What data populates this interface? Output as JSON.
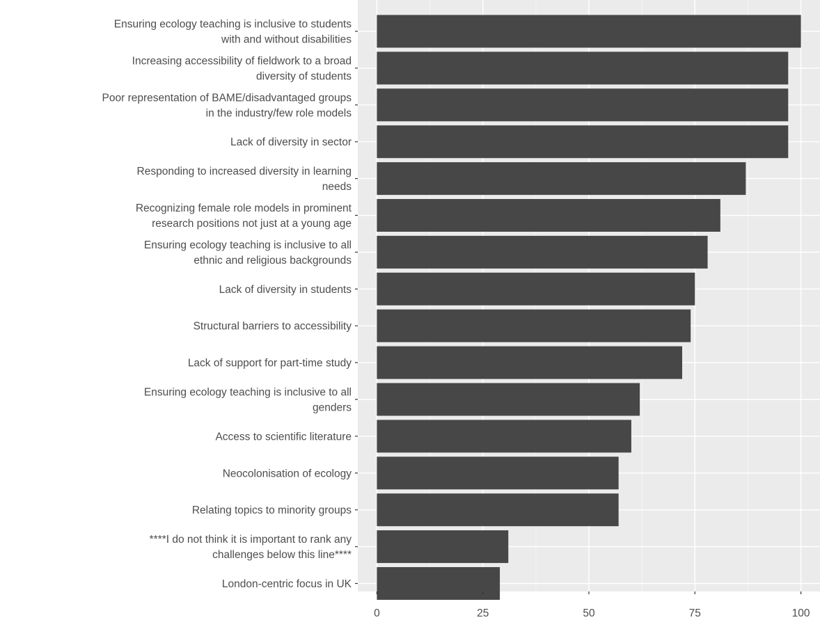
{
  "chart_data": {
    "type": "bar",
    "orientation": "horizontal",
    "categories": [
      [
        "Ensuring ecology teaching is inclusive to students",
        "with and without disabilities"
      ],
      [
        "Increasing accessibility of fieldwork to a broad",
        "diversity of students"
      ],
      [
        "Poor representation of BAME/disadvantaged groups",
        "in the industry/few role models"
      ],
      [
        "Lack of diversity in sector"
      ],
      [
        "Responding to increased diversity in learning",
        "needs"
      ],
      [
        "Recognizing female role models in prominent",
        "research positions not just at a young age"
      ],
      [
        "Ensuring ecology teaching is inclusive to all",
        "ethnic and religious backgrounds"
      ],
      [
        "Lack of diversity in students"
      ],
      [
        "Structural barriers to accessibility"
      ],
      [
        "Lack of support for part-time study"
      ],
      [
        "Ensuring ecology teaching is inclusive to all",
        "genders"
      ],
      [
        "Access to scientific literature"
      ],
      [
        "Neocolonisation of ecology"
      ],
      [
        "Relating topics to minority groups"
      ],
      [
        "****I do not think it is important to rank any",
        "challenges below this line****"
      ],
      [
        "London-centric focus in UK"
      ]
    ],
    "values": [
      100,
      97,
      97,
      97,
      87,
      81,
      78,
      75,
      74,
      72,
      62,
      60,
      57,
      57,
      31,
      29
    ],
    "xlim": [
      -4.5,
      104.5
    ],
    "xticks": [
      0,
      25,
      50,
      75,
      100
    ],
    "xtick_labels": [
      "0",
      "25",
      "50",
      "75",
      "100"
    ],
    "grid": true,
    "legend": "none",
    "colors": {
      "panel": "#ebebeb",
      "grid_major": "#ffffff",
      "bar": "#474747",
      "text": "#4d4d4d",
      "tick": "#333333"
    }
  }
}
